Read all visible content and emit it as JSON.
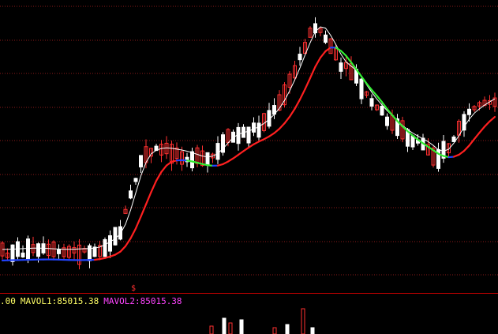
{
  "colors": {
    "background": "#000000",
    "grid": "#8b1a1a",
    "candle_up": "#ff3030",
    "candle_down": "#ffffff",
    "ma_short": "#ffffff",
    "ma_long_up": "#ff2020",
    "ma_long_down": "#33ee33",
    "ma_long_flat": "#2244ff",
    "legend_mavol1": "#ffff66",
    "legend_mavol2": "#ff44ff",
    "divider": "#c00000"
  },
  "volume_panel": {
    "legend_prefix": ".00",
    "mavol1_label": "MAVOL1:85015.38",
    "mavol2_label": "MAVOL2:85015.38"
  },
  "marker": {
    "symbol": "$"
  }
}
